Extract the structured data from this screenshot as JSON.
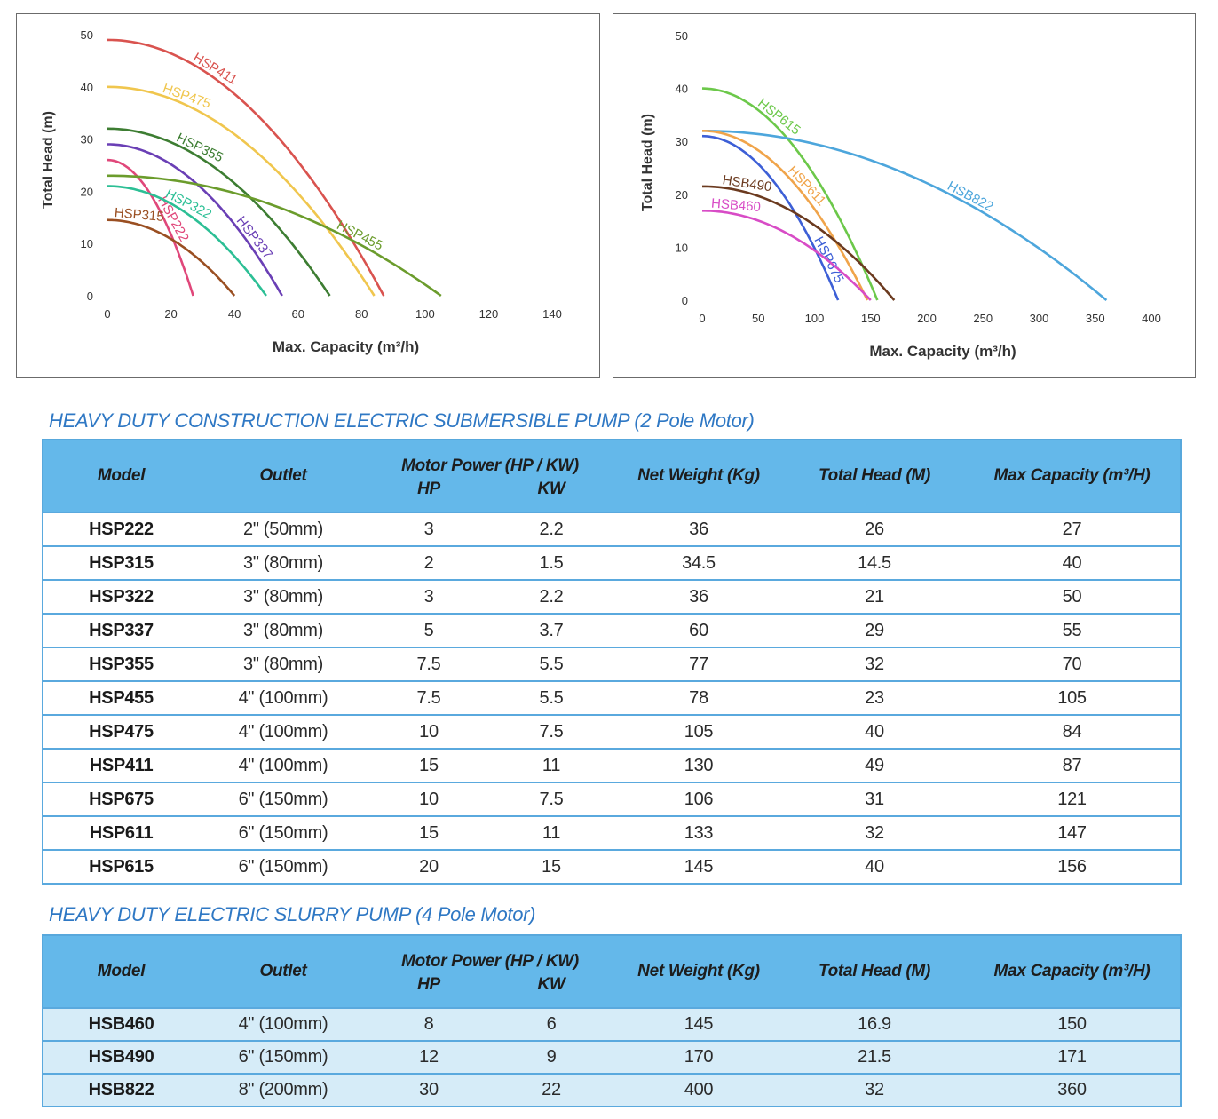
{
  "colors": {
    "accent_blue": "#2f78c4",
    "table_header": "#64b8ea",
    "table_border": "#5aa9de",
    "slurry_row_bg": "#d6ecf8"
  },
  "chart_data": [
    {
      "type": "line",
      "xlabel": "Max. Capacity (m³/h)",
      "ylabel": "Total Head (m)",
      "xlim": [
        0,
        140
      ],
      "ylim": [
        0,
        50
      ],
      "xticks": [
        "0",
        "20",
        "40",
        "60",
        "80",
        "100",
        "120",
        "140"
      ],
      "yticks": [
        "0",
        "10",
        "20",
        "30",
        "40",
        "50"
      ],
      "grid": false,
      "series": [
        {
          "name": "HSP411",
          "color": "#d9534f",
          "head": 49,
          "capacity": 87
        },
        {
          "name": "HSP475",
          "color": "#f0c64e",
          "head": 40,
          "capacity": 84
        },
        {
          "name": "HSP355",
          "color": "#3d7d32",
          "head": 32,
          "capacity": 70
        },
        {
          "name": "HSP337",
          "color": "#6a3fb5",
          "head": 29,
          "capacity": 55
        },
        {
          "name": "HSP222",
          "color": "#e0477a",
          "head": 26,
          "capacity": 27
        },
        {
          "name": "HSP455",
          "color": "#6b9c2c",
          "head": 23,
          "capacity": 105
        },
        {
          "name": "HSP322",
          "color": "#2cbf95",
          "head": 21,
          "capacity": 50
        },
        {
          "name": "HSP315",
          "color": "#9a4f22",
          "head": 14.5,
          "capacity": 40
        }
      ]
    },
    {
      "type": "line",
      "xlabel": "Max. Capacity (m³/h)",
      "ylabel": "Total Head (m)",
      "xlim": [
        0,
        400
      ],
      "ylim": [
        0,
        50
      ],
      "xticks": [
        "0",
        "50",
        "100",
        "150",
        "200",
        "250",
        "300",
        "350",
        "400"
      ],
      "yticks": [
        "0",
        "10",
        "20",
        "30",
        "40",
        "50"
      ],
      "grid": false,
      "series": [
        {
          "name": "HSP615",
          "color": "#6cc84a",
          "head": 40,
          "capacity": 156
        },
        {
          "name": "HSB822",
          "color": "#4da6dc",
          "head": 32,
          "capacity": 360
        },
        {
          "name": "HSP611",
          "color": "#f0a44a",
          "head": 32,
          "capacity": 147
        },
        {
          "name": "HSP675",
          "color": "#3d5fd6",
          "head": 31,
          "capacity": 121
        },
        {
          "name": "HSB490",
          "color": "#6b3a1f",
          "head": 21.5,
          "capacity": 171
        },
        {
          "name": "HSB460",
          "color": "#d84cc6",
          "head": 16.9,
          "capacity": 150
        }
      ]
    }
  ],
  "section1": {
    "title": "HEAVY DUTY CONSTRUCTION  ELECTRIC SUBMERSIBLE PUMP (2 Pole Motor)",
    "headers": {
      "model": "Model",
      "outlet": "Outlet",
      "motor_power": "Motor Power (HP / KW)",
      "hp": "HP",
      "kw": "KW",
      "net_weight": "Net Weight (Kg)",
      "total_head": "Total Head (M)",
      "max_capacity": "Max Capacity (m³/H)"
    },
    "rows": [
      [
        "HSP222",
        "2\" (50mm)",
        "3",
        "2.2",
        "36",
        "26",
        "27"
      ],
      [
        "HSP315",
        "3\" (80mm)",
        "2",
        "1.5",
        "34.5",
        "14.5",
        "40"
      ],
      [
        "HSP322",
        "3\" (80mm)",
        "3",
        "2.2",
        "36",
        "21",
        "50"
      ],
      [
        "HSP337",
        "3\" (80mm)",
        "5",
        "3.7",
        "60",
        "29",
        "55"
      ],
      [
        "HSP355",
        "3\" (80mm)",
        "7.5",
        "5.5",
        "77",
        "32",
        "70"
      ],
      [
        "HSP455",
        "4\" (100mm)",
        "7.5",
        "5.5",
        "78",
        "23",
        "105"
      ],
      [
        "HSP475",
        "4\" (100mm)",
        "10",
        "7.5",
        "105",
        "40",
        "84"
      ],
      [
        "HSP411",
        "4\" (100mm)",
        "15",
        "11",
        "130",
        "49",
        "87"
      ],
      [
        "HSP675",
        "6\" (150mm)",
        "10",
        "7.5",
        "106",
        "31",
        "121"
      ],
      [
        "HSP611",
        "6\" (150mm)",
        "15",
        "11",
        "133",
        "32",
        "147"
      ],
      [
        "HSP615",
        "6\" (150mm)",
        "20",
        "15",
        "145",
        "40",
        "156"
      ]
    ]
  },
  "section2": {
    "title": "HEAVY DUTY ELECTRIC SLURRY PUMP (4 Pole Motor)",
    "headers": {
      "model": "Model",
      "outlet": "Outlet",
      "motor_power": "Motor Power (HP / KW)",
      "hp": "HP",
      "kw": "KW",
      "net_weight": "Net Weight (Kg)",
      "total_head": "Total Head (M)",
      "max_capacity": "Max Capacity (m³/H)"
    },
    "rows": [
      [
        "HSB460",
        "4\" (100mm)",
        "8",
        "6",
        "145",
        "16.9",
        "150"
      ],
      [
        "HSB490",
        "6\" (150mm)",
        "12",
        "9",
        "170",
        "21.5",
        "171"
      ],
      [
        "HSB822",
        "8\" (200mm)",
        "30",
        "22",
        "400",
        "32",
        "360"
      ]
    ]
  }
}
